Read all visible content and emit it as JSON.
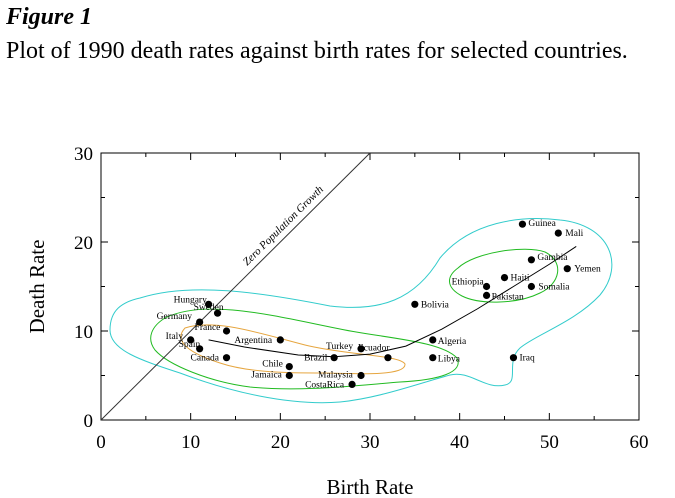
{
  "figure": {
    "title": "Figure 1",
    "caption": "Plot of 1990 death rates against birth rates for selected countries."
  },
  "chart_data": {
    "type": "scatter",
    "title": "",
    "xlabel": "Birth Rate",
    "ylabel": "Death Rate",
    "xlim": [
      0,
      60
    ],
    "ylim": [
      0,
      30
    ],
    "xticks": [
      0,
      10,
      20,
      30,
      40,
      50,
      60
    ],
    "yticks": [
      0,
      10,
      20,
      30
    ],
    "grid": false,
    "points": [
      {
        "label": "Hungary",
        "x": 12,
        "y": 13
      },
      {
        "label": "Sweden",
        "x": 13,
        "y": 12
      },
      {
        "label": "Germany",
        "x": 11,
        "y": 11
      },
      {
        "label": "France",
        "x": 14,
        "y": 10
      },
      {
        "label": "Italy",
        "x": 10,
        "y": 9
      },
      {
        "label": "Spain",
        "x": 11,
        "y": 8
      },
      {
        "label": "Canada",
        "x": 14,
        "y": 7
      },
      {
        "label": "Argentina",
        "x": 20,
        "y": 9
      },
      {
        "label": "Chile",
        "x": 21,
        "y": 6
      },
      {
        "label": "Jamaica",
        "x": 21,
        "y": 5
      },
      {
        "label": "Brazil",
        "x": 26,
        "y": 7
      },
      {
        "label": "Turkey",
        "x": 29,
        "y": 8
      },
      {
        "label": "Ecuador",
        "x": 32,
        "y": 7
      },
      {
        "label": "Malaysia",
        "x": 29,
        "y": 5
      },
      {
        "label": "CostaRica",
        "x": 28,
        "y": 4
      },
      {
        "label": "Bolivia",
        "x": 35,
        "y": 13
      },
      {
        "label": "Algeria",
        "x": 37,
        "y": 9
      },
      {
        "label": "Libya",
        "x": 37,
        "y": 7
      },
      {
        "label": "Iraq",
        "x": 46,
        "y": 7
      },
      {
        "label": "Pakistan",
        "x": 43,
        "y": 14
      },
      {
        "label": "Ethiopia",
        "x": 43,
        "y": 15
      },
      {
        "label": "Haiti",
        "x": 45,
        "y": 16
      },
      {
        "label": "Somalia",
        "x": 48,
        "y": 15
      },
      {
        "label": "Gambia",
        "x": 48,
        "y": 18
      },
      {
        "label": "Yemen",
        "x": 52,
        "y": 17
      },
      {
        "label": "Guinea",
        "x": 47,
        "y": 22
      },
      {
        "label": "Mali",
        "x": 51,
        "y": 21
      }
    ],
    "reference_line": {
      "label": "Zero Population Growth",
      "from": [
        0,
        0
      ],
      "to": [
        30,
        30
      ]
    },
    "trend_curve": [
      [
        12,
        9
      ],
      [
        16,
        8.2
      ],
      [
        22,
        7.3
      ],
      [
        26,
        7.1
      ],
      [
        30,
        7.4
      ],
      [
        34,
        8.3
      ],
      [
        38,
        10.2
      ],
      [
        42,
        12.5
      ],
      [
        46,
        15
      ],
      [
        50,
        17.5
      ],
      [
        53,
        19.5
      ]
    ],
    "colors": {
      "outer_contour": "#33cccc",
      "middle_contour": "#22bb22",
      "inner_contour": "#e6a640",
      "axes": "#000000",
      "points": "#000000"
    }
  }
}
